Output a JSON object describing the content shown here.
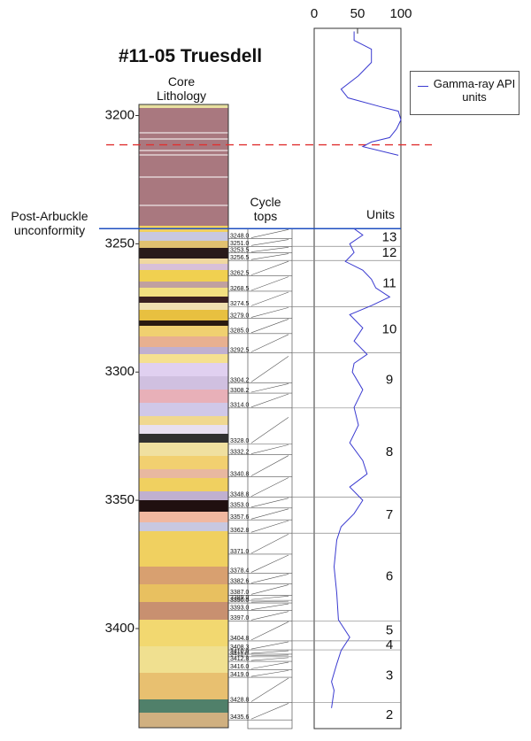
{
  "chart_data": {
    "type": "well-log",
    "title": "#11-05 Truesdell",
    "core_label": "Core Lithology",
    "cycle_label": "Cycle tops",
    "units_label": "Units",
    "annotation": "Post-Arbuckle unconformity",
    "annotation_depth": 3244.1,
    "dashed_line_depth": 3211.4,
    "dashed_line_color": "#e03030",
    "annotation_color": "#2050c0",
    "ylim": [
      3166,
      3439
    ],
    "yticks": [
      3200,
      3250,
      3300,
      3350,
      3400
    ],
    "xlim": [
      0,
      100
    ],
    "xticks": [
      0,
      50,
      100
    ],
    "series": [
      {
        "name": "Gamma-ray API units",
        "color": "#3a3ad0",
        "depths": [
          3167.2,
          3170.7,
          3174.1,
          3179.3,
          3184.5,
          3189.7,
          3193.1,
          3196.6,
          3198.3,
          3201.7,
          3205.2,
          3208.6,
          3210.3,
          3212.1,
          3215.5,
          3230,
          3244.1,
          3246.6,
          3250.0,
          3253.4,
          3256.9,
          3260.3,
          3263.8,
          3267.2,
          3270.7,
          3274.1,
          3277.6,
          3282.8,
          3287.9,
          3293.1,
          3296.6,
          3300.0,
          3306.9,
          3313.8,
          3320.7,
          3327.6,
          3334.5,
          3339.7,
          3344.8,
          3350.0,
          3355.2,
          3360.3,
          3365.5,
          3375.9,
          3386.2,
          3396.6,
          3403.4,
          3408.6,
          3413.8,
          3420.7,
          3424.1,
          3431.0
        ],
        "values": [
          46,
          46,
          66,
          66,
          51,
          31,
          39,
          77,
          97,
          100,
          95,
          87,
          66,
          56,
          97,
          null,
          46,
          56,
          41,
          46,
          36,
          56,
          66,
          71,
          87,
          66,
          41,
          56,
          46,
          61,
          46,
          44,
          56,
          46,
          51,
          41,
          56,
          61,
          41,
          56,
          46,
          31,
          26,
          23,
          26,
          28,
          41,
          31,
          26,
          20,
          23,
          20
        ]
      }
    ],
    "cycle_tops": [
      {
        "value": 3248,
        "label": "3248.0"
      },
      {
        "value": 3251,
        "label": "3251.0"
      },
      3253.5,
      3256.5,
      3262.5,
      3268.5,
      3274.5,
      {
        "value": 3279,
        "label": "3279.0"
      },
      {
        "value": 3285,
        "label": "3285.0"
      },
      3292.5,
      3304.2,
      3308.2,
      {
        "value": 3314,
        "label": "3314.0"
      },
      {
        "value": 3328,
        "label": "3328.0"
      },
      3332.2,
      3340.8,
      3348.8,
      {
        "value": 3353,
        "label": "3353.0"
      },
      3357.6,
      3362.8,
      {
        "value": 3371,
        "label": "3371.0"
      },
      3378.4,
      3382.6,
      {
        "value": 3387,
        "label": "3387.0"
      },
      {
        "value": 3389,
        "label": "3389.0"
      },
      {
        "value": 3390,
        "label": "3390.0"
      },
      {
        "value": 3393,
        "label": "3393.0"
      },
      {
        "value": 3397,
        "label": "3397.0"
      },
      3404.8,
      3408.3,
      {
        "value": 3410,
        "label": "3410.0"
      },
      {
        "value": 3411,
        "label": "3411.0"
      },
      3412.8,
      {
        "value": 3416,
        "label": "3416.0"
      },
      {
        "value": 3419,
        "label": "3419.0"
      },
      3428.8,
      3435.6
    ],
    "units": [
      {
        "name": "13",
        "top": 3244.1
      },
      {
        "name": "12",
        "top": 3251.0
      },
      {
        "name": "11",
        "top": 3256.5
      },
      {
        "name": "10",
        "top": 3274.5
      },
      {
        "name": "9",
        "top": 3292.5
      },
      {
        "name": "8",
        "top": 3314.0
      },
      {
        "name": "7",
        "top": 3348.8
      },
      {
        "name": "6",
        "top": 3362.8
      },
      {
        "name": "5",
        "top": 3397.0
      },
      {
        "name": "4",
        "top": 3404.8
      },
      {
        "name": "3",
        "top": 3408.3
      },
      {
        "name": "2",
        "top": 3428.8
      }
    ]
  }
}
